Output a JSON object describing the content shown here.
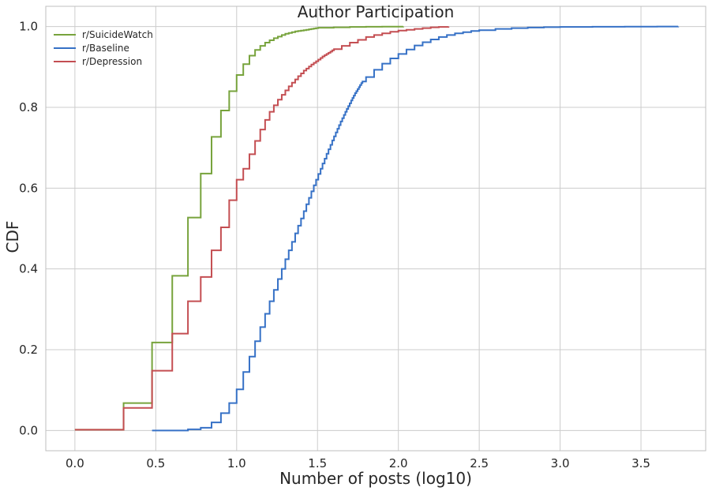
{
  "chart_data": {
    "type": "line",
    "title": "Author Participation",
    "xlabel": "Number of posts (log10)",
    "ylabel": "CDF",
    "xlim": [
      -0.18,
      3.9
    ],
    "ylim": [
      -0.05,
      1.05
    ],
    "xticks": [
      0.0,
      0.5,
      1.0,
      1.5,
      2.0,
      2.5,
      3.0,
      3.5
    ],
    "xtick_labels": [
      "0.0",
      "0.5",
      "1.0",
      "1.5",
      "2.0",
      "2.5",
      "3.0",
      "3.5"
    ],
    "yticks": [
      0.0,
      0.2,
      0.4,
      0.6,
      0.8,
      1.0
    ],
    "ytick_labels": [
      "0.0",
      "0.2",
      "0.4",
      "0.6",
      "0.8",
      "1.0"
    ],
    "grid": true,
    "legend_position": "top-left",
    "series": [
      {
        "name": "r/SuicideWatch",
        "color": "#77a33c",
        "step": true,
        "x": [
          0.0,
          0.301,
          0.477,
          0.602,
          0.699,
          0.778,
          0.845,
          0.903,
          0.954,
          1.0,
          1.041,
          1.079,
          1.114,
          1.146,
          1.176,
          1.204,
          1.23,
          1.255,
          1.279,
          1.301,
          1.322,
          1.342,
          1.362,
          1.38,
          1.398,
          1.415,
          1.431,
          1.447,
          1.462,
          1.477,
          1.491,
          1.505,
          1.6,
          1.7,
          1.8,
          1.9,
          2.03
        ],
        "y": [
          0.002,
          0.068,
          0.218,
          0.383,
          0.527,
          0.636,
          0.727,
          0.792,
          0.84,
          0.88,
          0.907,
          0.928,
          0.942,
          0.952,
          0.96,
          0.966,
          0.971,
          0.975,
          0.979,
          0.982,
          0.984,
          0.986,
          0.988,
          0.989,
          0.99,
          0.991,
          0.992,
          0.993,
          0.994,
          0.995,
          0.996,
          0.997,
          0.998,
          0.999,
          0.9995,
          0.9998,
          1.0
        ]
      },
      {
        "name": "r/Baseline",
        "color": "#3671c6",
        "step": true,
        "x": [
          0.477,
          0.602,
          0.699,
          0.778,
          0.845,
          0.903,
          0.954,
          1.0,
          1.041,
          1.079,
          1.114,
          1.146,
          1.176,
          1.204,
          1.23,
          1.255,
          1.279,
          1.301,
          1.322,
          1.342,
          1.362,
          1.38,
          1.398,
          1.415,
          1.431,
          1.447,
          1.462,
          1.477,
          1.491,
          1.505,
          1.519,
          1.531,
          1.544,
          1.556,
          1.568,
          1.58,
          1.591,
          1.602,
          1.613,
          1.623,
          1.633,
          1.643,
          1.653,
          1.663,
          1.672,
          1.681,
          1.69,
          1.699,
          1.708,
          1.716,
          1.724,
          1.732,
          1.74,
          1.748,
          1.756,
          1.763,
          1.771,
          1.778,
          1.8,
          1.85,
          1.9,
          1.95,
          2.0,
          2.05,
          2.1,
          2.15,
          2.2,
          2.25,
          2.3,
          2.35,
          2.4,
          2.45,
          2.5,
          2.6,
          2.7,
          2.8,
          2.9,
          3.0,
          3.2,
          3.4,
          3.6,
          3.73
        ],
        "y": [
          0.0,
          0.0,
          0.003,
          0.007,
          0.02,
          0.043,
          0.068,
          0.102,
          0.145,
          0.183,
          0.221,
          0.256,
          0.289,
          0.32,
          0.348,
          0.375,
          0.4,
          0.424,
          0.446,
          0.467,
          0.488,
          0.507,
          0.525,
          0.543,
          0.56,
          0.576,
          0.592,
          0.607,
          0.621,
          0.635,
          0.648,
          0.661,
          0.673,
          0.685,
          0.696,
          0.707,
          0.718,
          0.728,
          0.738,
          0.747,
          0.756,
          0.765,
          0.773,
          0.781,
          0.789,
          0.796,
          0.803,
          0.81,
          0.817,
          0.823,
          0.829,
          0.835,
          0.84,
          0.845,
          0.85,
          0.855,
          0.86,
          0.864,
          0.875,
          0.893,
          0.908,
          0.921,
          0.932,
          0.943,
          0.953,
          0.961,
          0.968,
          0.974,
          0.979,
          0.983,
          0.986,
          0.989,
          0.991,
          0.994,
          0.996,
          0.9975,
          0.9985,
          0.999,
          0.9995,
          0.9998,
          0.9999,
          1.0
        ]
      },
      {
        "name": "r/Depression",
        "color": "#c44e52",
        "step": true,
        "x": [
          0.0,
          0.301,
          0.477,
          0.602,
          0.699,
          0.778,
          0.845,
          0.903,
          0.954,
          1.0,
          1.041,
          1.079,
          1.114,
          1.146,
          1.176,
          1.204,
          1.23,
          1.255,
          1.279,
          1.301,
          1.322,
          1.342,
          1.362,
          1.38,
          1.398,
          1.415,
          1.431,
          1.447,
          1.462,
          1.477,
          1.491,
          1.505,
          1.519,
          1.531,
          1.544,
          1.556,
          1.568,
          1.58,
          1.591,
          1.602,
          1.65,
          1.7,
          1.75,
          1.8,
          1.85,
          1.9,
          1.95,
          2.0,
          2.05,
          2.1,
          2.15,
          2.2,
          2.25,
          2.31
        ],
        "y": [
          0.002,
          0.056,
          0.148,
          0.24,
          0.32,
          0.38,
          0.446,
          0.503,
          0.57,
          0.621,
          0.648,
          0.684,
          0.717,
          0.745,
          0.769,
          0.789,
          0.805,
          0.819,
          0.831,
          0.842,
          0.852,
          0.861,
          0.869,
          0.877,
          0.884,
          0.891,
          0.896,
          0.901,
          0.906,
          0.91,
          0.914,
          0.918,
          0.922,
          0.926,
          0.929,
          0.932,
          0.935,
          0.938,
          0.941,
          0.944,
          0.952,
          0.96,
          0.967,
          0.974,
          0.979,
          0.983,
          0.987,
          0.99,
          0.992,
          0.994,
          0.996,
          0.998,
          0.999,
          1.0
        ]
      }
    ]
  }
}
